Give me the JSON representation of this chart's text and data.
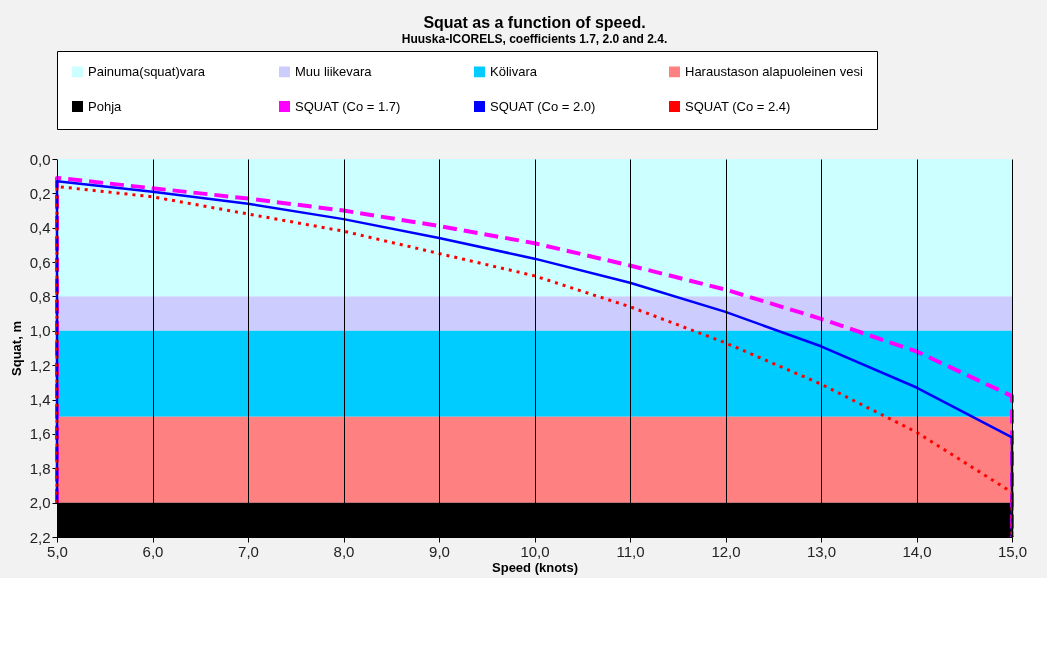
{
  "chart_data": {
    "type": "line",
    "title": "Squat as a function of speed.",
    "subtitle": "Huuska-ICORELS, coefficients 1.7, 2.0 and 2.4.",
    "xlabel": "Speed (knots)",
    "ylabel": "Squat, m",
    "xlim": [
      5,
      15
    ],
    "ylim": [
      2.2,
      0
    ],
    "xticks": [
      {
        "value": 5,
        "label": "5,0"
      },
      {
        "value": 6,
        "label": "6,0"
      },
      {
        "value": 7,
        "label": "7,0"
      },
      {
        "value": 8,
        "label": "8,0"
      },
      {
        "value": 9,
        "label": "9,0"
      },
      {
        "value": 10,
        "label": "10,0"
      },
      {
        "value": 11,
        "label": "11,0"
      },
      {
        "value": 12,
        "label": "12,0"
      },
      {
        "value": 13,
        "label": "13,0"
      },
      {
        "value": 14,
        "label": "14,0"
      },
      {
        "value": 15,
        "label": "15,0"
      }
    ],
    "yticks": [
      {
        "value": 0,
        "label": "0,0"
      },
      {
        "value": 0.2,
        "label": "0,2"
      },
      {
        "value": 0.4,
        "label": "0,4"
      },
      {
        "value": 0.6,
        "label": "0,6"
      },
      {
        "value": 0.8,
        "label": "0,8"
      },
      {
        "value": 1.0,
        "label": "1,0"
      },
      {
        "value": 1.2,
        "label": "1,2"
      },
      {
        "value": 1.4,
        "label": "1,4"
      },
      {
        "value": 1.6,
        "label": "1,6"
      },
      {
        "value": 1.8,
        "label": "1,8"
      },
      {
        "value": 2.0,
        "label": "2,0"
      },
      {
        "value": 2.2,
        "label": "2,2"
      }
    ],
    "bands": [
      {
        "axis": "y",
        "from": 0,
        "to": 0.8,
        "label": "Painuma(squat)vara",
        "color": "#ccffff"
      },
      {
        "axis": "y",
        "from": 0.8,
        "to": 1.0,
        "label": "Muu liikevara",
        "color": "#ccccff"
      },
      {
        "axis": "y",
        "from": 1.0,
        "to": 1.5,
        "label": "Kölivara",
        "color": "#00ccff"
      },
      {
        "axis": "y",
        "from": 1.5,
        "to": 2.0,
        "label": "Haraustason alapuoleinen vesi",
        "color": "#ff8080"
      },
      {
        "axis": "y",
        "from": 2.0,
        "to": 2.2,
        "label": "Pohja",
        "color": "#000000"
      }
    ],
    "series": [
      {
        "name": "SQUAT (Co = 1.7)",
        "color": "#ff00ff",
        "line_style": "dashed",
        "x": [
          5,
          5,
          6,
          7,
          8,
          9,
          10,
          11,
          12,
          13,
          14,
          15,
          15
        ],
        "values": [
          2.0,
          0.11,
          0.17,
          0.23,
          0.3,
          0.39,
          0.49,
          0.62,
          0.76,
          0.93,
          1.12,
          1.38,
          2.2
        ]
      },
      {
        "name": "SQUAT (Co = 2.0)",
        "color": "#0000ff",
        "line_style": "solid",
        "x": [
          5,
          5,
          6,
          7,
          8,
          9,
          10,
          11,
          12,
          13,
          14,
          15,
          15
        ],
        "values": [
          2.0,
          0.13,
          0.19,
          0.26,
          0.35,
          0.46,
          0.58,
          0.72,
          0.89,
          1.09,
          1.33,
          1.62,
          2.2
        ]
      },
      {
        "name": "SQUAT (Co = 2.4)",
        "color": "#ff0000",
        "line_style": "dotted",
        "x": [
          5,
          5,
          6,
          7,
          8,
          9,
          10,
          11,
          12,
          13,
          14,
          15,
          15
        ],
        "values": [
          2.0,
          0.16,
          0.22,
          0.32,
          0.42,
          0.55,
          0.68,
          0.86,
          1.07,
          1.31,
          1.59,
          1.94,
          2.2
        ]
      }
    ],
    "grid": "x",
    "legend": "top",
    "marker": "none"
  }
}
